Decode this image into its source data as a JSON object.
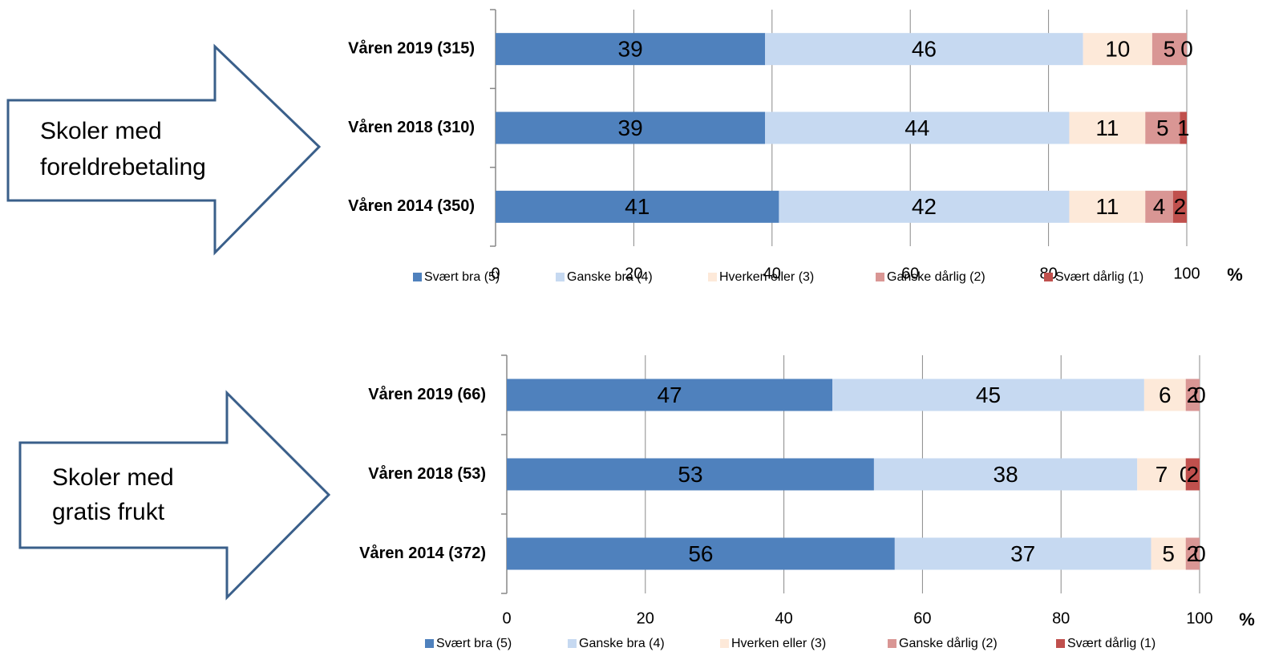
{
  "chart_data": [
    {
      "type": "stacked_bar_horizontal",
      "annotation": [
        "Skoler med",
        "foreldrebetaling"
      ],
      "categories": [
        "Våren 2019 (315)",
        "Våren 2018 (310)",
        "Våren 2014 (350)"
      ],
      "series": [
        {
          "name": "Svært bra (5)",
          "color": "#4f81bd",
          "values": [
            39,
            39,
            41
          ]
        },
        {
          "name": "Ganske bra (4)",
          "color": "#c6d9f1",
          "values": [
            46,
            44,
            42
          ]
        },
        {
          "name": "Hverken eller (3)",
          "color": "#fde9d9",
          "values": [
            10,
            11,
            11
          ]
        },
        {
          "name": "Ganske dårlig (2)",
          "color": "#d99694",
          "values": [
            5,
            5,
            4
          ]
        },
        {
          "name": "Svært dårlig (1)",
          "color": "#c0504d",
          "values": [
            0,
            1,
            2
          ]
        }
      ],
      "xlim": [
        0,
        100
      ],
      "xticks": [
        0,
        20,
        40,
        60,
        80,
        100
      ],
      "xlabel": "%",
      "grid": true,
      "legend": "bottom"
    },
    {
      "type": "stacked_bar_horizontal",
      "annotation": [
        "Skoler med",
        "gratis frukt"
      ],
      "categories": [
        "Våren 2019 (66)",
        "Våren 2018 (53)",
        "Våren 2014 (372)"
      ],
      "series": [
        {
          "name": "Svært bra (5)",
          "color": "#4f81bd",
          "values": [
            47,
            53,
            56
          ]
        },
        {
          "name": "Ganske bra (4)",
          "color": "#c6d9f1",
          "values": [
            45,
            38,
            37
          ]
        },
        {
          "name": "Hverken eller (3)",
          "color": "#fde9d9",
          "values": [
            6,
            7,
            5
          ]
        },
        {
          "name": "Ganske dårlig (2)",
          "color": "#d99694",
          "values": [
            2,
            0,
            2
          ]
        },
        {
          "name": "Svært dårlig (1)",
          "color": "#c0504d",
          "values": [
            0,
            2,
            0
          ]
        }
      ],
      "xlim": [
        0,
        100
      ],
      "xticks": [
        0,
        20,
        40,
        60,
        80,
        100
      ],
      "xlabel": "%",
      "grid": true,
      "legend": "bottom"
    }
  ]
}
